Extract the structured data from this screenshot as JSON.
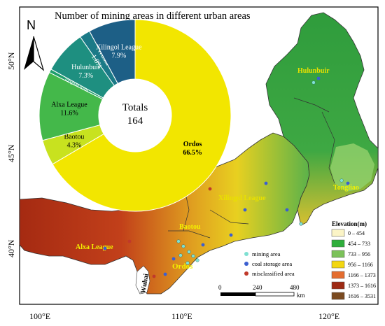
{
  "title": "Number of mining areas in different urban areas",
  "north_label": "N",
  "donut": {
    "total_label": "Totals",
    "total_value": "164",
    "slices": [
      {
        "name": "Ordos",
        "percent": "66.5%",
        "value": 66.5,
        "color": "#f2e600"
      },
      {
        "name": "Baotou",
        "percent": "4.3%",
        "value": 4.3,
        "color": "#c8e21f"
      },
      {
        "name": "Alxa League",
        "percent": "11.6%",
        "value": 11.6,
        "color": "#44b84a"
      },
      {
        "name": "Tongliao",
        "percent": "0.6%",
        "value": 0.6,
        "color": "#1f9e6b"
      },
      {
        "name": "Hulunbuir",
        "percent": "7.3%",
        "value": 7.3,
        "color": "#1e8f80"
      },
      {
        "name": "Wuhai",
        "percent": "1.8%",
        "value": 1.8,
        "color": "#1b7a87"
      },
      {
        "name": "Xilingol League",
        "percent": "7.9%",
        "value": 7.9,
        "color": "#1d5f86"
      }
    ]
  },
  "axes": {
    "lat_labels": [
      "50°N",
      "45°N",
      "40°N"
    ],
    "lon_labels": [
      "100°E",
      "110°E",
      "120°E"
    ]
  },
  "region_labels": {
    "hulunbuir": "Hulunbuir",
    "xilingol": "Xilingol League",
    "tongliao": "Tongliao",
    "baotou": "Baotou",
    "alxa": "Alxa League",
    "ordos": "Ordos",
    "wuhai": "Wuhai"
  },
  "point_legend": [
    {
      "label": "mining area",
      "color": "#7fe0d2"
    },
    {
      "label": "coal storage area",
      "color": "#3b5fd0"
    },
    {
      "label": "misclassified area",
      "color": "#c0392b"
    }
  ],
  "elevation_legend": {
    "title": "Elevation(m)",
    "classes": [
      {
        "label": "0 – 454",
        "color": "#fbf4c6"
      },
      {
        "label": "454 – 733",
        "color": "#2fae3c"
      },
      {
        "label": "733 – 956",
        "color": "#7cc25a"
      },
      {
        "label": "956 – 1166",
        "color": "#f3d712"
      },
      {
        "label": "1166 – 1373",
        "color": "#e46d2f"
      },
      {
        "label": "1373 – 1616",
        "color": "#9d2a14"
      },
      {
        "label": "1616 – 3531",
        "color": "#7a4a20"
      }
    ]
  },
  "scale_bar": {
    "ticks": [
      "0",
      "240",
      "480"
    ],
    "unit": "km"
  }
}
